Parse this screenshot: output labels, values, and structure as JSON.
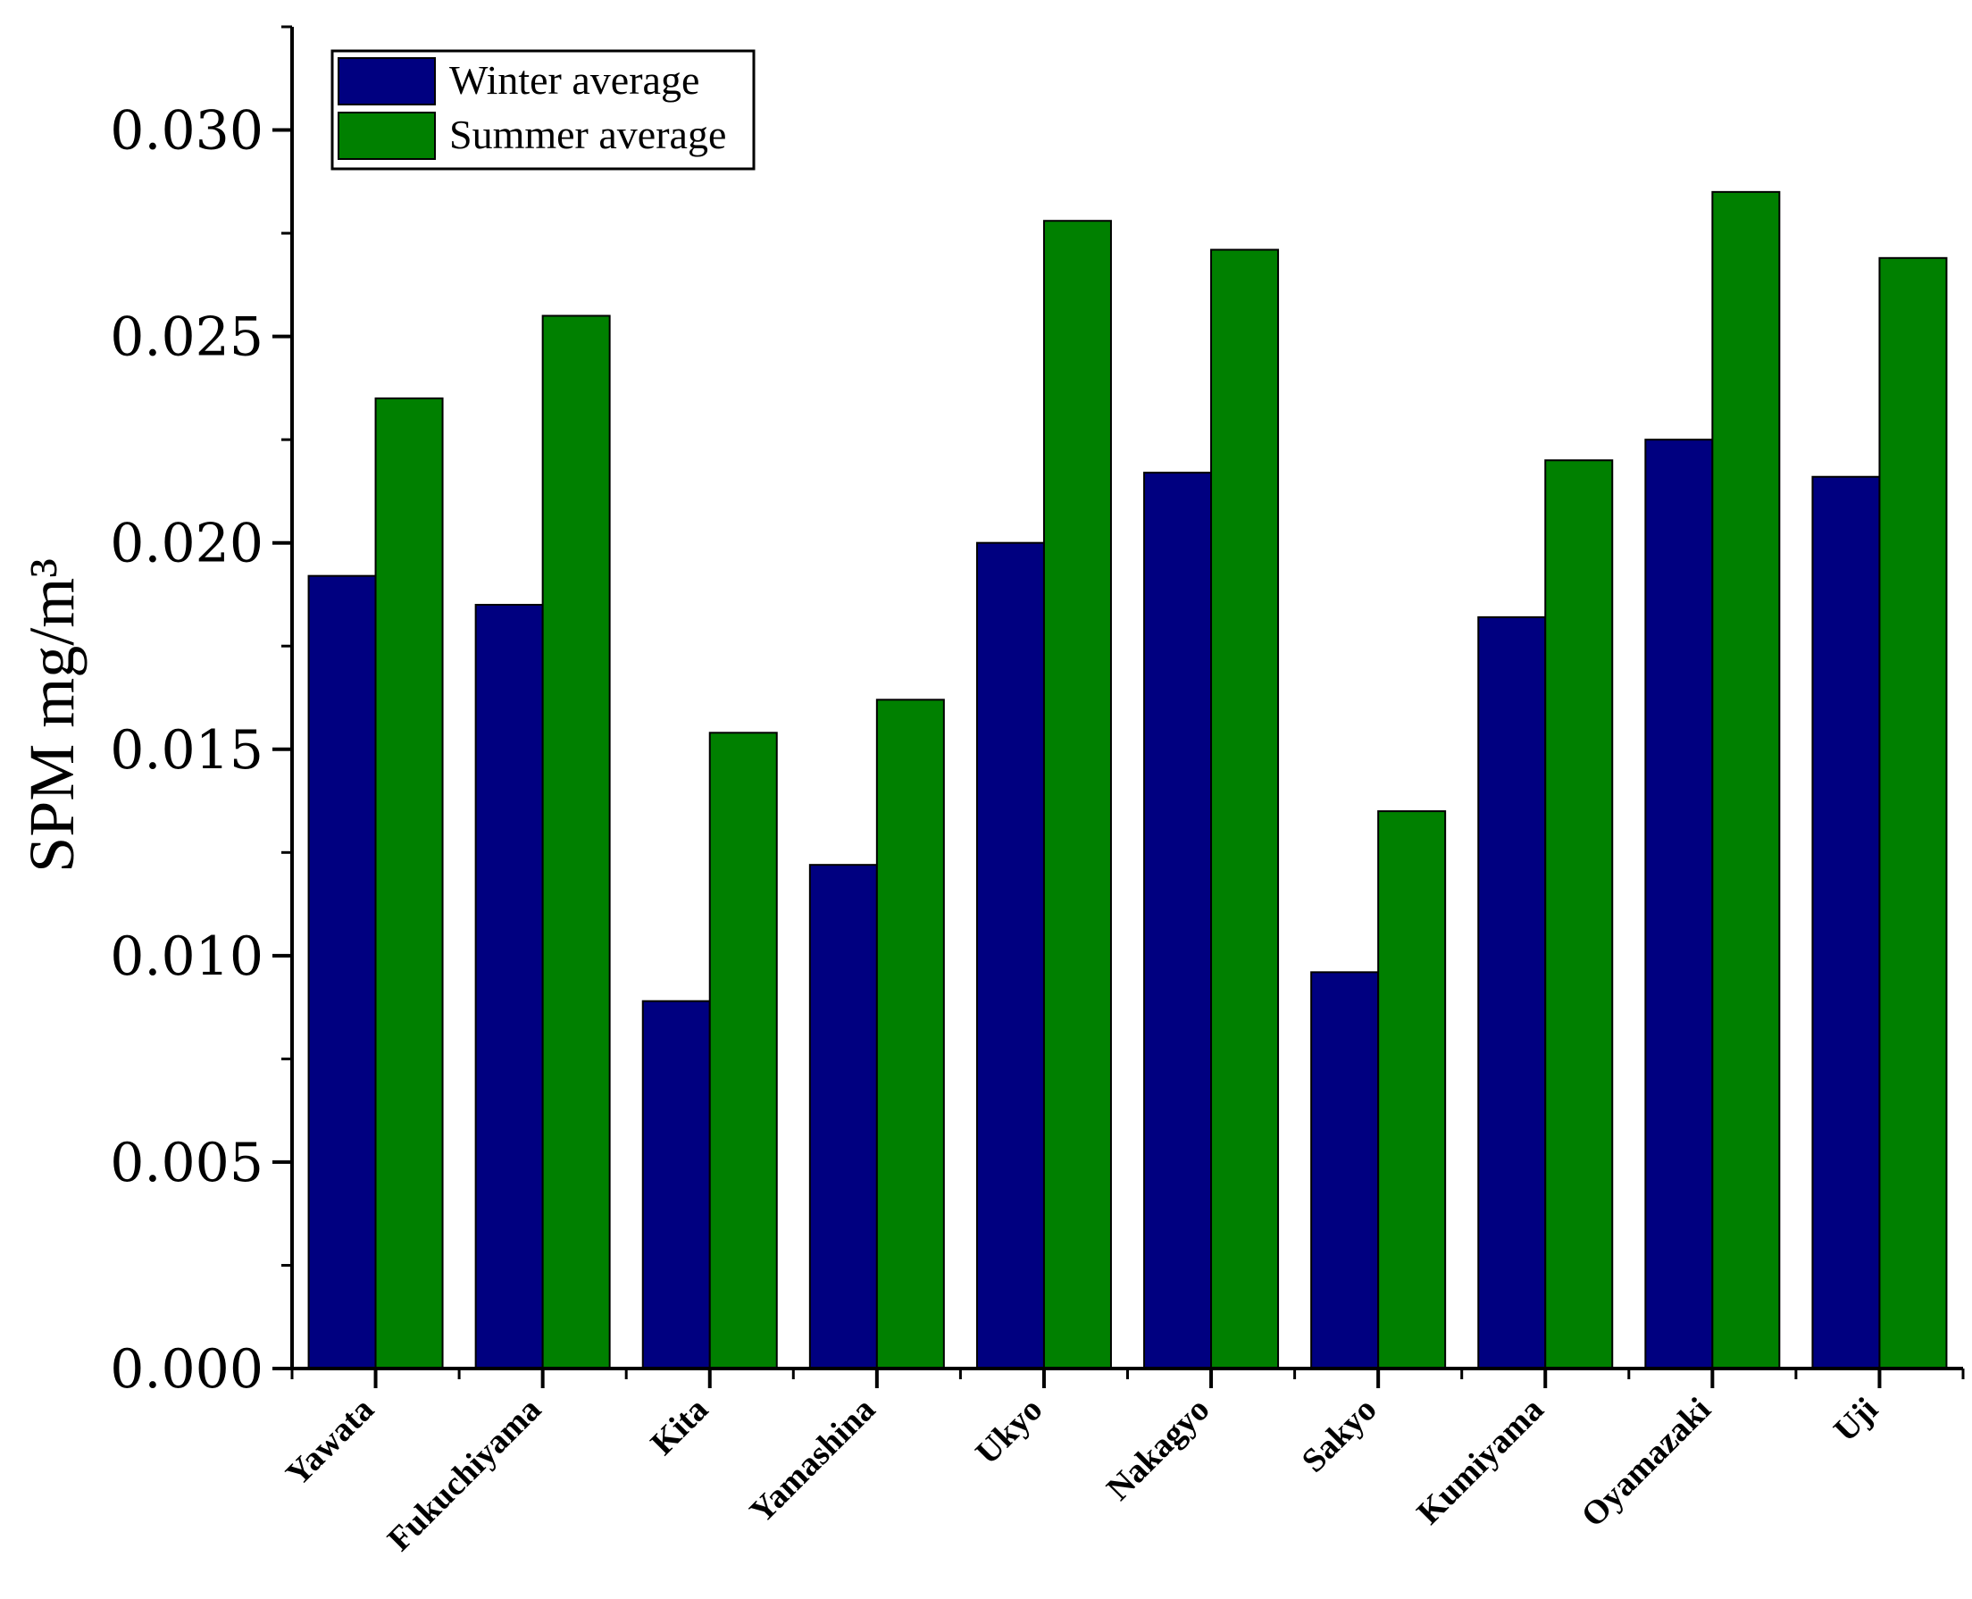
{
  "chart_data": {
    "type": "bar",
    "title": "",
    "xlabel": "",
    "ylabel": "SPM mg/m³",
    "ylim": [
      0,
      0.0325
    ],
    "yticks": [
      "0.000",
      "0.005",
      "0.010",
      "0.015",
      "0.020",
      "0.025",
      "0.030"
    ],
    "ytick_values": [
      0,
      0.005,
      0.01,
      0.015,
      0.02,
      0.025,
      0.03
    ],
    "grid": false,
    "legend_position": "top-left",
    "categories": [
      "Yawata",
      "Fukuchiyama",
      "Kita",
      "Yamashina",
      "Ukyo",
      "Nakagyo",
      "Sakyo",
      "Kumiyama",
      "Oyamazaki",
      "Uji"
    ],
    "series": [
      {
        "name": "Winter average",
        "color": "#000080",
        "values": [
          0.0192,
          0.0185,
          0.0089,
          0.0122,
          0.02,
          0.0217,
          0.0096,
          0.0182,
          0.0225,
          0.0216
        ]
      },
      {
        "name": "Summer average",
        "color": "#008000",
        "values": [
          0.0235,
          0.0255,
          0.0154,
          0.0162,
          0.0278,
          0.0271,
          0.0135,
          0.022,
          0.0285,
          0.0269
        ]
      }
    ]
  }
}
